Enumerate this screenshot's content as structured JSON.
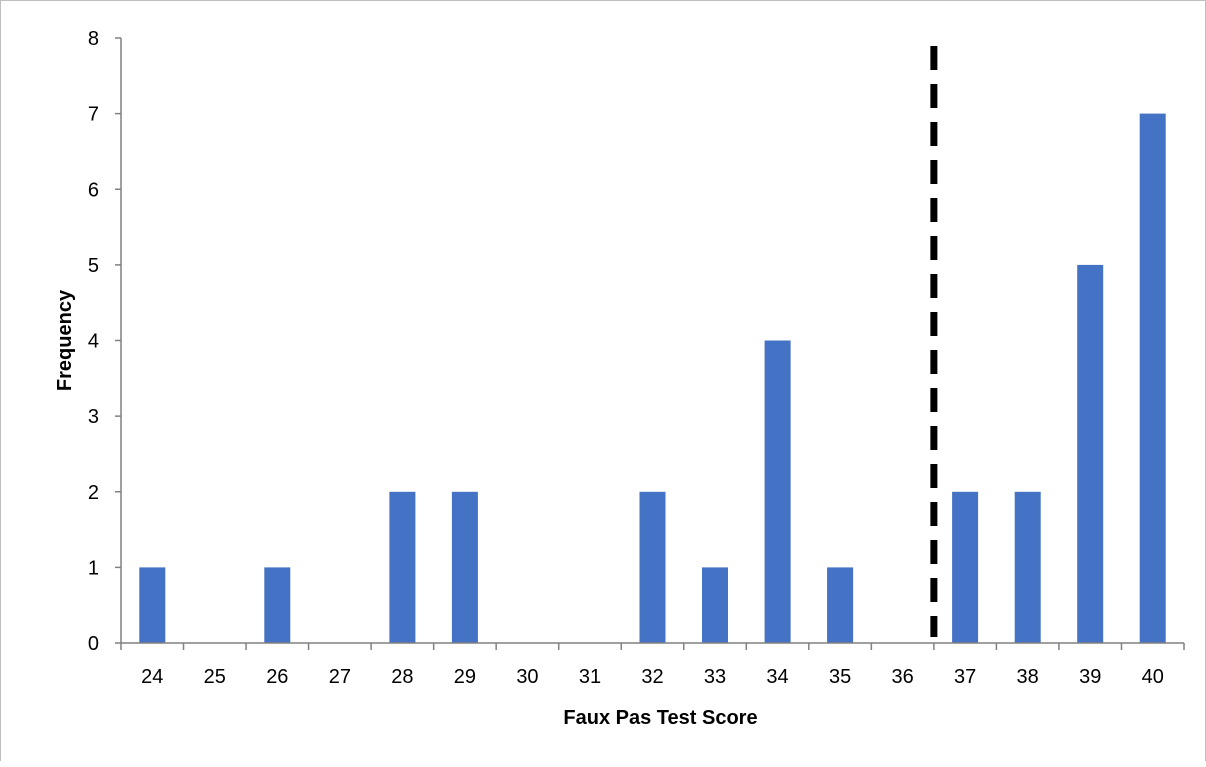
{
  "chart_data": {
    "type": "bar",
    "title": "",
    "xlabel": "Faux Pas Test Score",
    "ylabel": "Frequency",
    "categories": [
      "24",
      "25",
      "26",
      "27",
      "28",
      "29",
      "30",
      "31",
      "32",
      "33",
      "34",
      "35",
      "36",
      "37",
      "38",
      "39",
      "40"
    ],
    "series": [
      {
        "values": [
          1,
          0,
          1,
          0,
          2,
          2,
          0,
          0,
          2,
          1,
          4,
          1,
          0,
          2,
          2,
          5,
          7
        ]
      }
    ],
    "ylim": [
      0,
      8
    ],
    "yticks": [
      "0",
      "1",
      "2",
      "3",
      "4",
      "5",
      "6",
      "7",
      "8"
    ],
    "grid": false,
    "legend": "none",
    "cutoff_line": {
      "style": "dashed",
      "x_between": [
        "36",
        "37"
      ]
    },
    "colors": {
      "bar": "#4472c4",
      "axis": "#808080",
      "cutoff": "#000000",
      "border": "#bfbfbf"
    }
  }
}
